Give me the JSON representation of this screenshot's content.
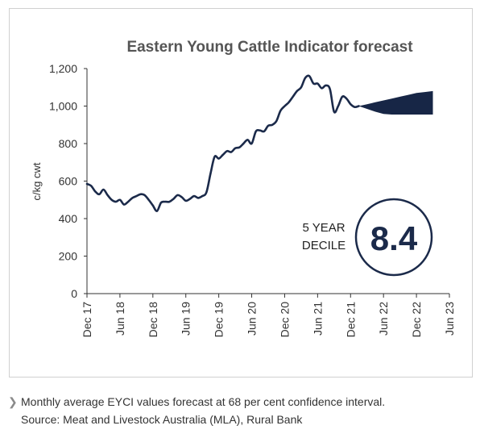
{
  "chart_data": {
    "type": "area",
    "title": "Eastern Young Cattle Indicator forecast",
    "xlabel": "",
    "ylabel": "c/kg cwt",
    "ylim": [
      0,
      1200
    ],
    "yticks": [
      "0",
      "200",
      "400",
      "600",
      "800",
      "1,000",
      "1,200"
    ],
    "xticks": [
      "Dec 17",
      "Jun 18",
      "Dec 18",
      "Jun 19",
      "Dec 19",
      "Jun 20",
      "Dec 20",
      "Jun 21",
      "Dec 21",
      "Jun 22",
      "Dec 22",
      "Jun 23"
    ],
    "series": [
      {
        "values": [
          [
            0,
            585
          ],
          [
            0.5,
            575
          ],
          [
            1,
            545
          ],
          [
            1.5,
            530
          ],
          [
            2,
            555
          ],
          [
            2.5,
            525
          ],
          [
            3,
            500
          ],
          [
            3.5,
            490
          ],
          [
            4,
            500
          ],
          [
            4.5,
            475
          ],
          [
            5,
            490
          ],
          [
            5.5,
            510
          ],
          [
            6,
            520
          ],
          [
            6.5,
            530
          ],
          [
            7,
            525
          ],
          [
            7.5,
            500
          ],
          [
            8,
            470
          ],
          [
            8.5,
            440
          ],
          [
            9,
            485
          ],
          [
            9.5,
            490
          ],
          [
            10,
            490
          ],
          [
            10.5,
            505
          ],
          [
            11,
            525
          ],
          [
            11.5,
            515
          ],
          [
            12,
            495
          ],
          [
            12.5,
            505
          ],
          [
            13,
            520
          ],
          [
            13.5,
            510
          ],
          [
            14,
            520
          ],
          [
            14.5,
            540
          ],
          [
            15,
            640
          ],
          [
            15.5,
            730
          ],
          [
            16,
            720
          ],
          [
            16.5,
            740
          ],
          [
            17,
            760
          ],
          [
            17.5,
            755
          ],
          [
            18,
            775
          ],
          [
            18.5,
            780
          ],
          [
            19,
            800
          ],
          [
            19.5,
            820
          ],
          [
            20,
            800
          ],
          [
            20.5,
            865
          ],
          [
            21,
            870
          ],
          [
            21.5,
            865
          ],
          [
            22,
            895
          ],
          [
            22.5,
            900
          ],
          [
            23,
            920
          ],
          [
            23.5,
            975
          ],
          [
            24,
            1000
          ],
          [
            24.5,
            1020
          ],
          [
            25,
            1050
          ],
          [
            25.5,
            1080
          ],
          [
            26,
            1100
          ],
          [
            26.5,
            1150
          ],
          [
            27,
            1160
          ],
          [
            27.5,
            1120
          ],
          [
            28,
            1120
          ],
          [
            28.5,
            1095
          ],
          [
            29,
            1110
          ],
          [
            29.5,
            1090
          ],
          [
            30,
            970
          ],
          [
            30.5,
            1000
          ],
          [
            31,
            1050
          ],
          [
            31.5,
            1040
          ],
          [
            32,
            1010
          ],
          [
            32.5,
            995
          ],
          [
            33,
            1000
          ]
        ]
      }
    ],
    "forecast_band": {
      "x": [
        33,
        34,
        35,
        36,
        37,
        38,
        39,
        40,
        41,
        42
      ],
      "upper": [
        1000,
        1010,
        1020,
        1030,
        1040,
        1050,
        1060,
        1070,
        1075,
        1080
      ],
      "lower": [
        1000,
        985,
        970,
        958,
        955,
        955,
        955,
        955,
        955,
        955
      ]
    },
    "grid": false,
    "legend": "none"
  },
  "decile": {
    "label_line1": "5 YEAR",
    "label_line2": "DECILE",
    "value": "8.4"
  },
  "caption": {
    "line1": "Monthly average EYCI values forecast at 68 per cent confidence interval.",
    "line2": "Source: Meat and Livestock Australia (MLA), Rural Bank"
  },
  "colors": {
    "line": "#1b2a4a",
    "band": "#172646",
    "axis": "#333333",
    "text": "#3a3a3a"
  }
}
